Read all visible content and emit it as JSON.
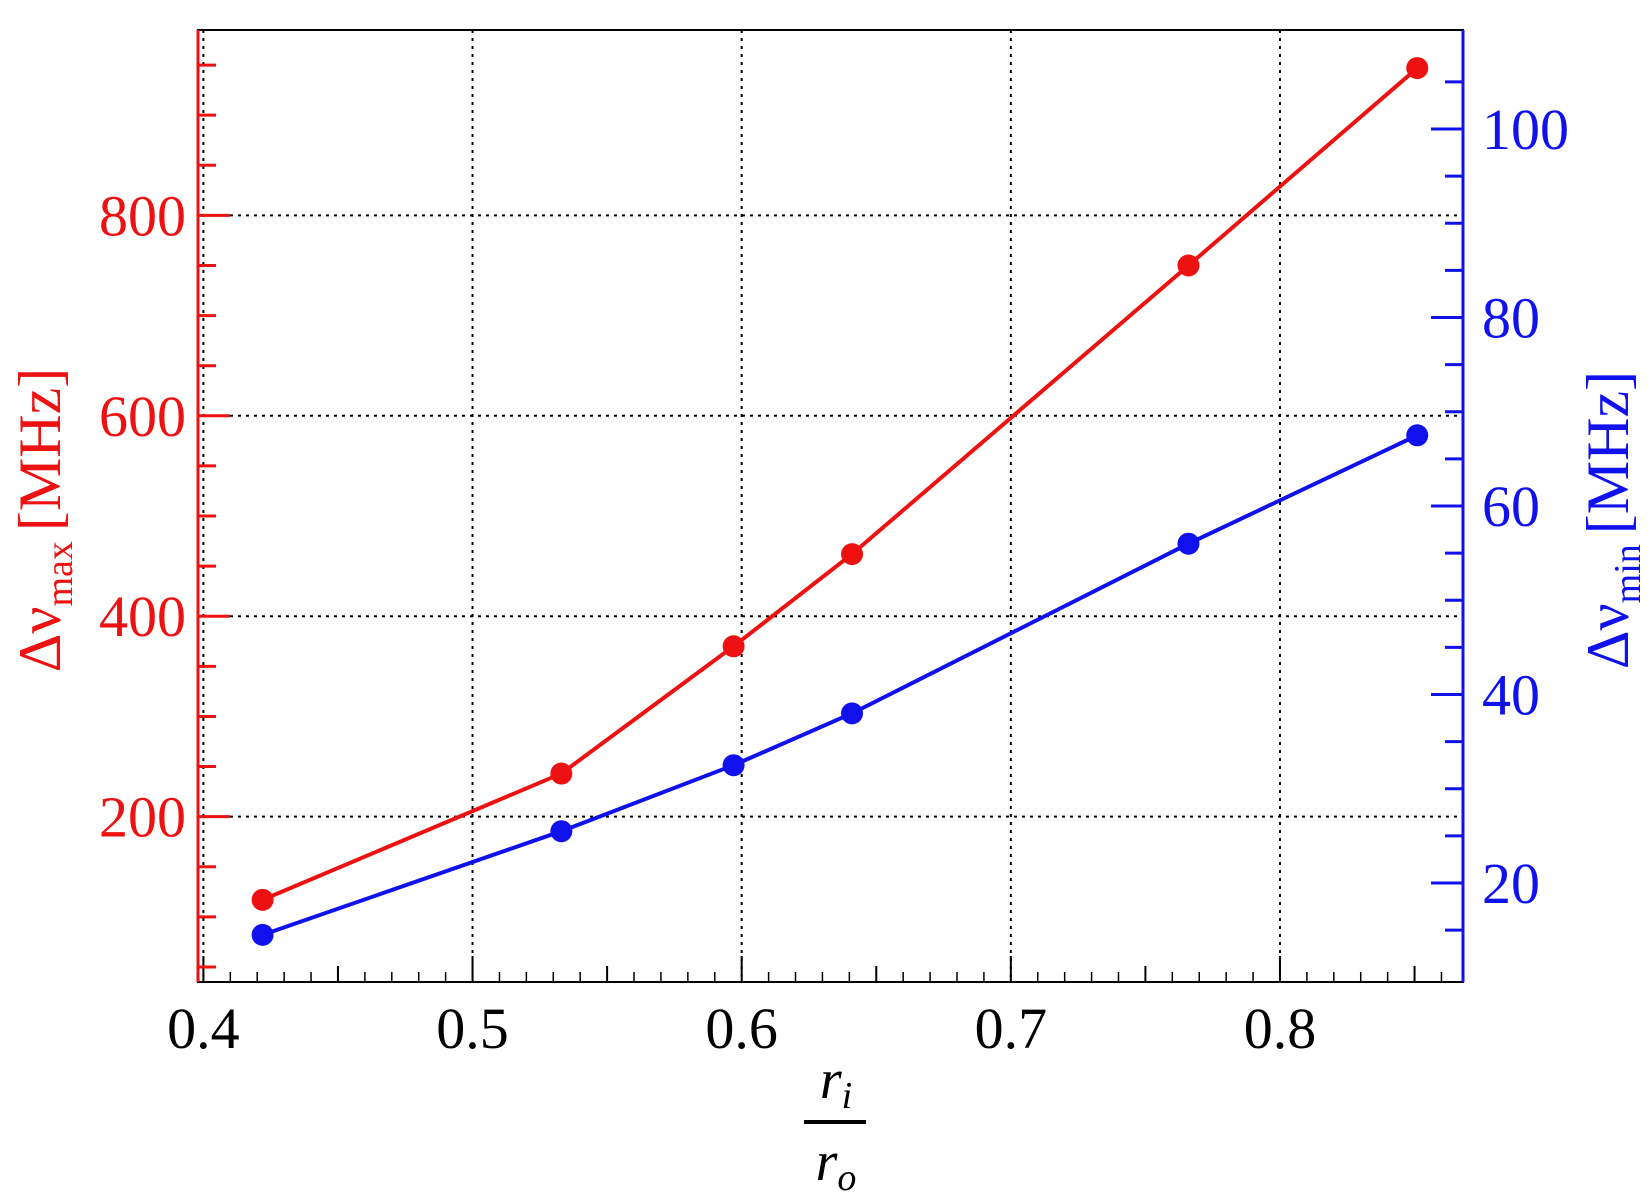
{
  "chart_data": {
    "type": "line",
    "xlabel": {
      "num_main": "r",
      "num_sub": "i",
      "den_main": "r",
      "den_sub": "o"
    },
    "xlim": [
      0.398,
      0.868
    ],
    "xticks": [
      "0.4",
      "0.5",
      "0.6",
      "0.7",
      "0.8"
    ],
    "xtick_values": [
      0.4,
      0.5,
      0.6,
      0.7,
      0.8
    ],
    "left_axis": {
      "label_main": "Δν",
      "label_sub": "max",
      "label_unit": "[MHz]",
      "ylim": [
        35,
        985
      ],
      "ticks": [
        "200",
        "400",
        "600",
        "800"
      ],
      "tick_values": [
        200,
        400,
        600,
        800
      ],
      "color": "#ee1111"
    },
    "right_axis": {
      "label_main": "Δν",
      "label_sub": "min",
      "label_unit": "[MHz]",
      "ylim": [
        9.5,
        110.5
      ],
      "ticks": [
        "20",
        "40",
        "60",
        "80",
        "100"
      ],
      "tick_values": [
        20,
        40,
        60,
        80,
        100
      ],
      "color": "#1111ee"
    },
    "grid": true,
    "series": [
      {
        "axis": "left",
        "color": "#ee1111",
        "x": [
          0.422,
          0.533,
          0.597,
          0.641,
          0.766,
          0.851
        ],
        "values": [
          117,
          243,
          370,
          462,
          750,
          947
        ]
      },
      {
        "axis": "right",
        "color": "#1111ee",
        "x": [
          0.422,
          0.533,
          0.597,
          0.641,
          0.766,
          0.851
        ],
        "values": [
          14.5,
          25.5,
          32.5,
          38.0,
          56.0,
          67.5
        ]
      }
    ]
  }
}
